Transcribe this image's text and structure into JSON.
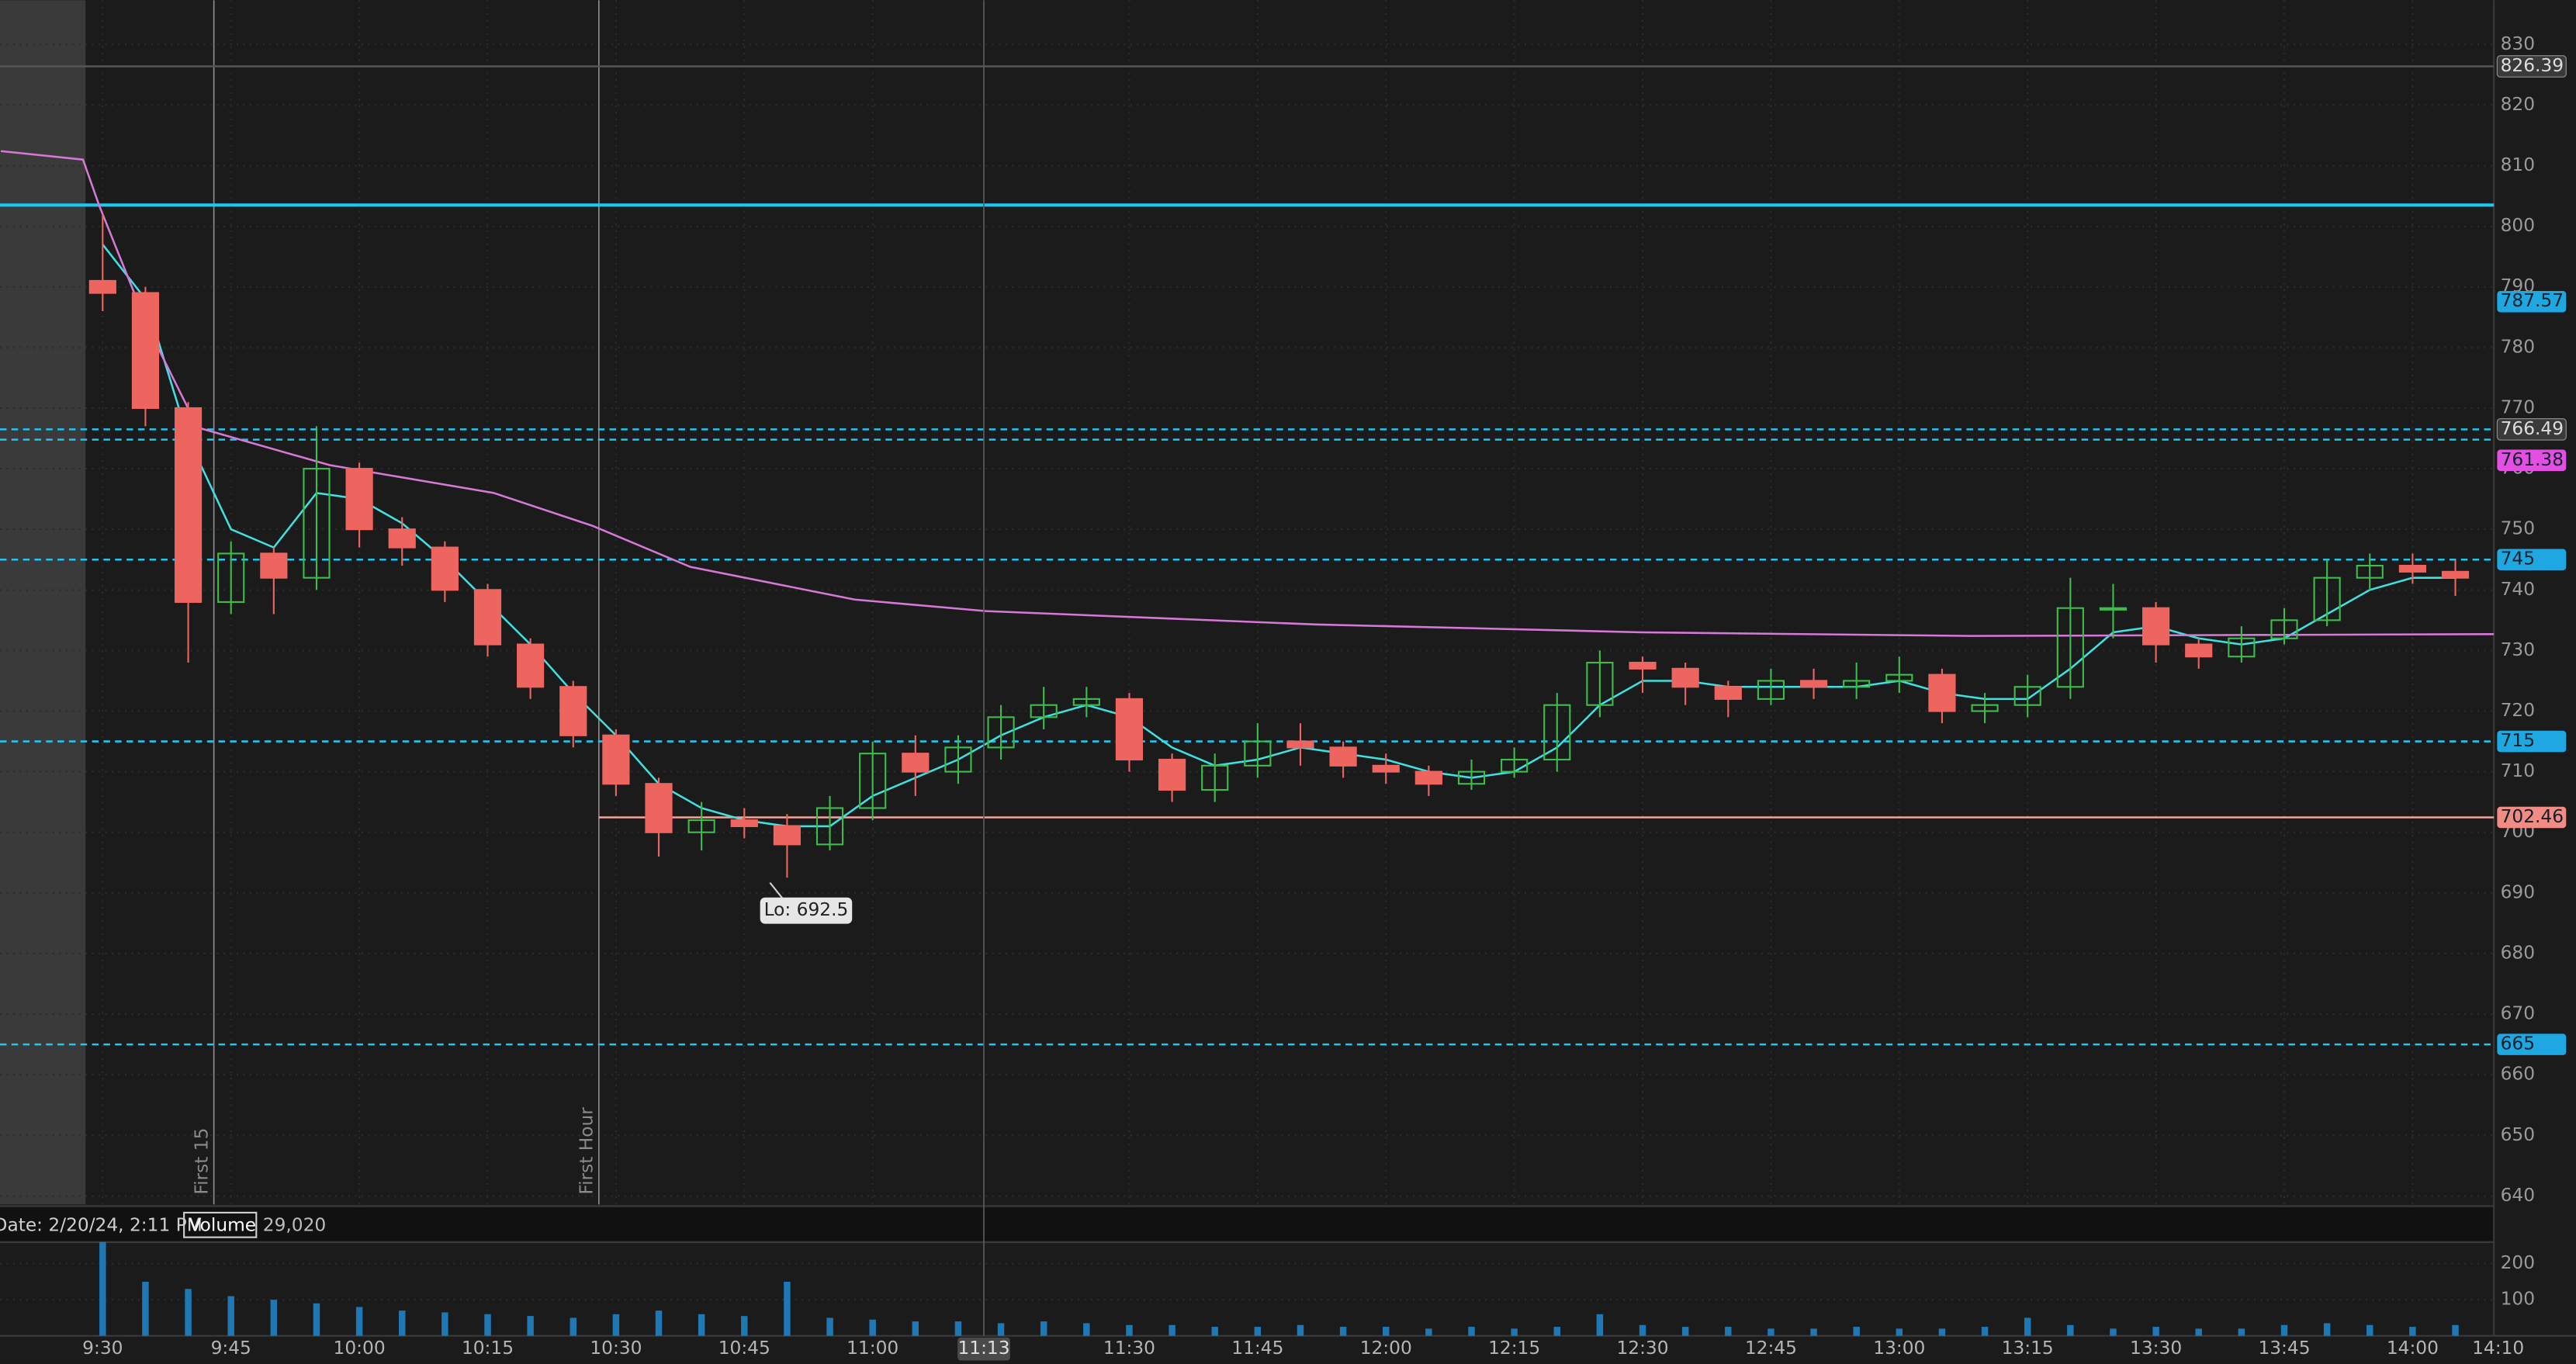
{
  "chart_data": [
    {
      "type": "candlestick",
      "x": [
        0,
        5,
        10,
        15,
        20,
        25,
        30,
        35,
        40,
        45,
        50,
        55,
        60,
        65,
        70,
        75,
        80,
        85,
        90,
        95,
        100,
        105,
        110,
        115,
        120,
        125,
        130,
        135,
        140,
        145,
        150,
        155,
        160,
        165,
        170,
        175,
        180,
        185,
        190,
        195,
        200,
        205,
        210,
        215,
        220,
        225,
        230,
        235,
        240,
        245,
        250,
        255,
        260,
        265,
        270,
        275
      ],
      "open": [
        791,
        789,
        770,
        738,
        746,
        742,
        760,
        750,
        747,
        740,
        731,
        724,
        716,
        708,
        700,
        702,
        701,
        698,
        704,
        713,
        710,
        714,
        719,
        721,
        722,
        712,
        707,
        711,
        715,
        714,
        711,
        710,
        708,
        710,
        712,
        721,
        728,
        727,
        724,
        722,
        725,
        724,
        725,
        726,
        720,
        721,
        724,
        737,
        737,
        731,
        729,
        732,
        735,
        742,
        744,
        743
      ],
      "high": [
        802,
        790,
        771,
        748,
        747,
        767,
        761,
        752,
        748,
        741,
        732,
        725,
        717,
        709,
        705,
        704,
        703,
        706,
        715,
        716,
        716,
        721,
        724,
        724,
        723,
        713,
        713,
        718,
        718,
        715,
        713,
        711,
        712,
        714,
        723,
        730,
        729,
        728,
        725,
        727,
        727,
        728,
        729,
        727,
        723,
        726,
        742,
        741,
        738,
        732,
        734,
        737,
        745,
        746,
        746,
        745
      ],
      "low": [
        786,
        767,
        728,
        736,
        736,
        740,
        747,
        744,
        738,
        729,
        722,
        714,
        706,
        696,
        697,
        699,
        692.5,
        697,
        702,
        706,
        708,
        712,
        717,
        719,
        710,
        705,
        705,
        709,
        711,
        709,
        708,
        706,
        707,
        709,
        710,
        719,
        723,
        721,
        719,
        721,
        722,
        722,
        723,
        718,
        718,
        719,
        722,
        732,
        728,
        727,
        728,
        731,
        734,
        740,
        741,
        739
      ],
      "close": [
        789,
        770,
        738,
        746,
        742,
        760,
        750,
        747,
        740,
        731,
        724,
        716,
        708,
        700,
        702,
        701,
        698,
        704,
        713,
        710,
        714,
        719,
        721,
        722,
        712,
        707,
        711,
        715,
        714,
        711,
        710,
        708,
        710,
        712,
        721,
        728,
        727,
        724,
        722,
        725,
        724,
        725,
        726,
        720,
        721,
        724,
        737,
        737,
        731,
        729,
        732,
        735,
        742,
        744,
        743,
        742
      ],
      "up_color": "#3dbb4c",
      "down_color": "#ee6560",
      "lines": [
        {
          "color": "#3fe0e0",
          "values": [
            797,
            788,
            765,
            750,
            747,
            756,
            755,
            751,
            745,
            738,
            731,
            723,
            716,
            708,
            704,
            702,
            701,
            701,
            706,
            709,
            712,
            716,
            719,
            721,
            719,
            714,
            711,
            712,
            714,
            713,
            712,
            710,
            709,
            710,
            714,
            721,
            725,
            725,
            724,
            724,
            724,
            724,
            725,
            723,
            722,
            722,
            727,
            733,
            734,
            732,
            731,
            732,
            736,
            740,
            742,
            742
          ]
        },
        {
          "color": "#d678d6",
          "x": [
            -11.9,
            -2.3,
            -0.4,
            5.4,
            11.1,
            26.5,
            45.7,
            57.2,
            68.7,
            87.9,
            103.3,
            141.7,
            180,
            218.4,
            279.5
          ],
          "values": [
            812.4,
            811,
            803.4,
            783,
            766.8,
            760.6,
            756,
            750.6,
            743.8,
            738.4,
            736.5,
            734.3,
            733,
            732.4,
            732.7
          ]
        }
      ],
      "xlim": [
        -12,
        279.5
      ],
      "ylim": [
        638.6,
        837.3
      ],
      "yticks": [
        640,
        650,
        660,
        670,
        680,
        690,
        700,
        710,
        720,
        730,
        740,
        750,
        760,
        770,
        780,
        790,
        800,
        810,
        820,
        830
      ],
      "grid": true,
      "premarket_end": -2,
      "levels": [
        {
          "value": 826.39,
          "color": "#555555",
          "style": "solid"
        },
        {
          "value": 803.5,
          "color": "#1ec8f0",
          "style": "solid"
        },
        {
          "value": 766.49,
          "color": "#1ec8f0",
          "style": "dashed"
        },
        {
          "value": 764.8,
          "color": "#1ec8f0",
          "style": "dashed"
        },
        {
          "value": 745,
          "color": "#1ec8f0",
          "style": "dashed"
        },
        {
          "value": 715,
          "color": "#1ec8f0",
          "style": "dashed"
        },
        {
          "value": 702.46,
          "color": "#f0a59e",
          "style": "solid",
          "from": 58
        },
        {
          "value": 665,
          "color": "#1ec8f0",
          "style": "dashed"
        }
      ],
      "tags": [
        {
          "value": 826.39,
          "color": "#3a3a3a"
        },
        {
          "value": 787.57,
          "color": "#1ea7e1"
        },
        {
          "value": 766.49,
          "color": "#3a3a3a"
        },
        {
          "value": 761.38,
          "color": "#e24fe2"
        },
        {
          "value": 745,
          "color": "#1ea7e1"
        },
        {
          "value": 715,
          "color": "#1ea7e1"
        },
        {
          "value": 702.46,
          "color": "#f08c84"
        },
        {
          "value": 665,
          "color": "#1ea7e1"
        }
      ],
      "markers": [
        {
          "x": 13,
          "label": "First 15"
        },
        {
          "x": 58,
          "label": "First Hour"
        }
      ],
      "annotation": {
        "text": "Lo: 692.5",
        "x": 78,
        "y": 692.5
      }
    },
    {
      "type": "bar",
      "title": "Volume",
      "total": "29,020",
      "date": "Date: 2/20/24, 2:11 PM",
      "x": [
        0,
        5,
        10,
        15,
        20,
        25,
        30,
        35,
        40,
        45,
        50,
        55,
        60,
        65,
        70,
        75,
        80,
        85,
        90,
        95,
        100,
        105,
        110,
        115,
        120,
        125,
        130,
        135,
        140,
        145,
        150,
        155,
        160,
        165,
        170,
        175,
        180,
        185,
        190,
        195,
        200,
        205,
        210,
        215,
        220,
        225,
        230,
        235,
        240,
        245,
        250,
        255,
        260,
        265,
        270,
        275
      ],
      "values": [
        260,
        150,
        130,
        110,
        100,
        90,
        80,
        70,
        65,
        60,
        55,
        50,
        60,
        70,
        60,
        55,
        150,
        50,
        45,
        40,
        40,
        35,
        40,
        35,
        30,
        30,
        25,
        25,
        30,
        25,
        25,
        20,
        25,
        20,
        25,
        60,
        30,
        25,
        25,
        20,
        20,
        25,
        20,
        20,
        25,
        50,
        30,
        20,
        25,
        20,
        20,
        30,
        35,
        30,
        25,
        30
      ],
      "color": "#1f77b4",
      "xlim": [
        -12,
        279.5
      ],
      "ylim": [
        0,
        255
      ],
      "yticks": [
        100,
        200
      ],
      "xticks": [
        {
          "value": 0,
          "label": "9:30"
        },
        {
          "value": 15,
          "label": "9:45"
        },
        {
          "value": 30,
          "label": "10:00"
        },
        {
          "value": 45,
          "label": "10:15"
        },
        {
          "value": 60,
          "label": "10:30"
        },
        {
          "value": 75,
          "label": "10:45"
        },
        {
          "value": 90,
          "label": "11:00"
        },
        {
          "value": 120,
          "label": "11:30"
        },
        {
          "value": 135,
          "label": "11:45"
        },
        {
          "value": 150,
          "label": "12:00"
        },
        {
          "value": 165,
          "label": "12:15"
        },
        {
          "value": 180,
          "label": "12:30"
        },
        {
          "value": 195,
          "label": "12:45"
        },
        {
          "value": 210,
          "label": "13:00"
        },
        {
          "value": 225,
          "label": "13:15"
        },
        {
          "value": 240,
          "label": "13:30"
        },
        {
          "value": 255,
          "label": "13:45"
        },
        {
          "value": 270,
          "label": "14:00"
        },
        {
          "value": 280,
          "label": "14:10"
        }
      ],
      "cursor": {
        "value": 103,
        "label": "11:13"
      }
    }
  ]
}
